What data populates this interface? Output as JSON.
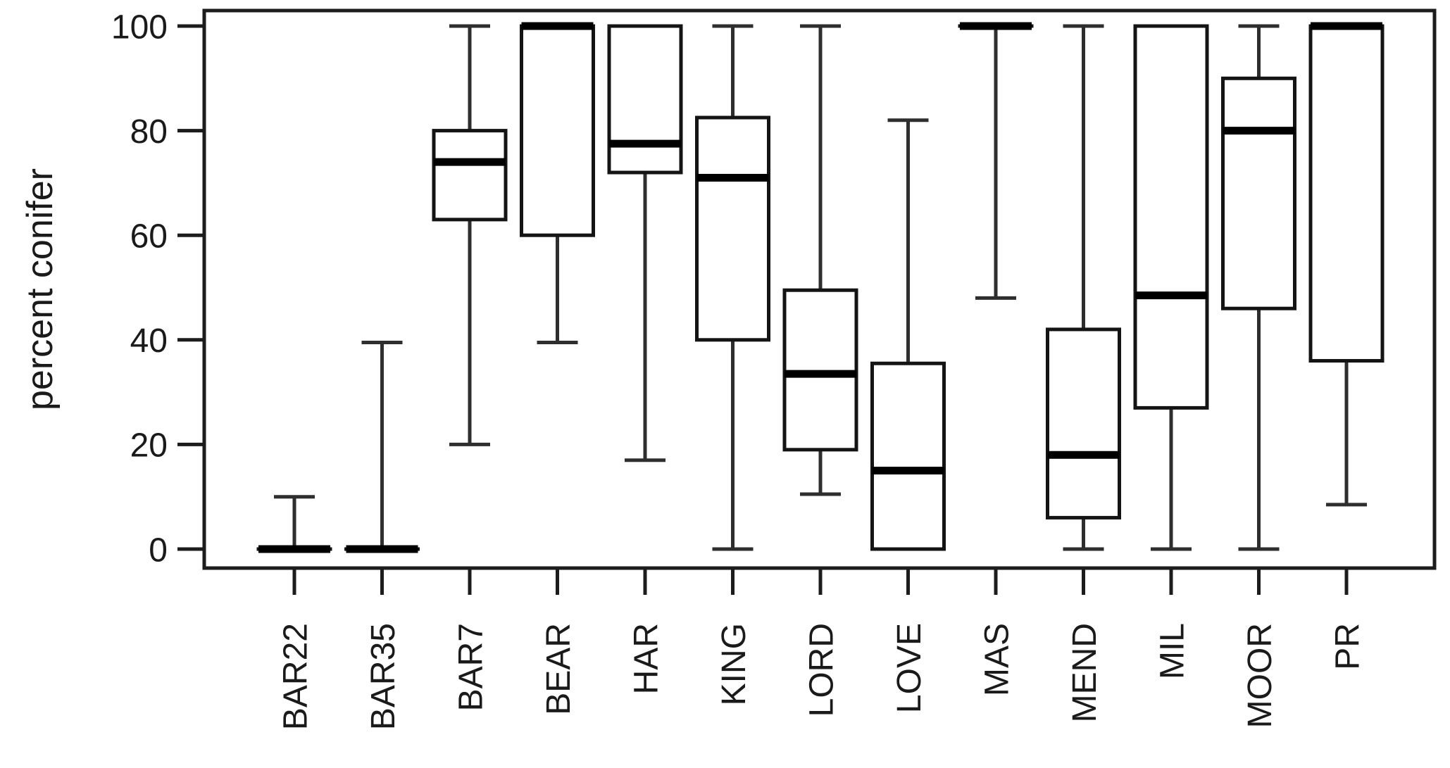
{
  "chart_data": {
    "type": "boxplot",
    "title": "",
    "xlabel": "",
    "ylabel": "percent conifer",
    "ylim": [
      0,
      100
    ],
    "yticks": [
      0,
      20,
      40,
      60,
      80,
      100
    ],
    "grid": false,
    "legend": null,
    "orientation": "vertical",
    "categories": [
      "BAR22",
      "BAR35",
      "BAR7",
      "BEAR",
      "HAR",
      "KING",
      "LORD",
      "LOVE",
      "MAS",
      "MEND",
      "MIL",
      "MOOR",
      "PR"
    ],
    "boxes": [
      {
        "label": "BAR22",
        "min": 0,
        "q1": 0,
        "median": 0,
        "q3": 0,
        "max": 10
      },
      {
        "label": "BAR35",
        "min": 0,
        "q1": 0,
        "median": 0,
        "q3": 0,
        "max": 39.5
      },
      {
        "label": "BAR7",
        "min": 20,
        "q1": 63,
        "median": 74,
        "q3": 80,
        "max": 100
      },
      {
        "label": "BEAR",
        "min": 39.5,
        "q1": 60,
        "median": 100,
        "q3": 100,
        "max": 100
      },
      {
        "label": "HAR",
        "min": 17,
        "q1": 72,
        "median": 77.5,
        "q3": 100,
        "max": 100
      },
      {
        "label": "KING",
        "min": 0,
        "q1": 40,
        "median": 71,
        "q3": 82.5,
        "max": 100
      },
      {
        "label": "LORD",
        "min": 10.5,
        "q1": 19,
        "median": 33.5,
        "q3": 49.5,
        "max": 100
      },
      {
        "label": "LOVE",
        "min": 0,
        "q1": 0,
        "median": 15,
        "q3": 35.5,
        "max": 82
      },
      {
        "label": "MAS",
        "min": 48,
        "q1": 100,
        "median": 100,
        "q3": 100,
        "max": 100
      },
      {
        "label": "MEND",
        "min": 0,
        "q1": 6,
        "median": 18,
        "q3": 42,
        "max": 100
      },
      {
        "label": "MIL",
        "min": 0,
        "q1": 27,
        "median": 48.5,
        "q3": 100,
        "max": 100
      },
      {
        "label": "MOOR",
        "min": 0,
        "q1": 46,
        "median": 80,
        "q3": 90,
        "max": 100
      },
      {
        "label": "PR",
        "min": 8.5,
        "q1": 36,
        "median": 100,
        "q3": 100,
        "max": 100
      }
    ]
  },
  "style": {
    "background": "#ffffff",
    "frame_color": "#1c1c1c",
    "whisker_color": "#2e2e2e",
    "box_edge_color": "#141414",
    "median_color": "#000000",
    "box_fill": "#ffffff",
    "text_color": "#1a1a1a"
  }
}
